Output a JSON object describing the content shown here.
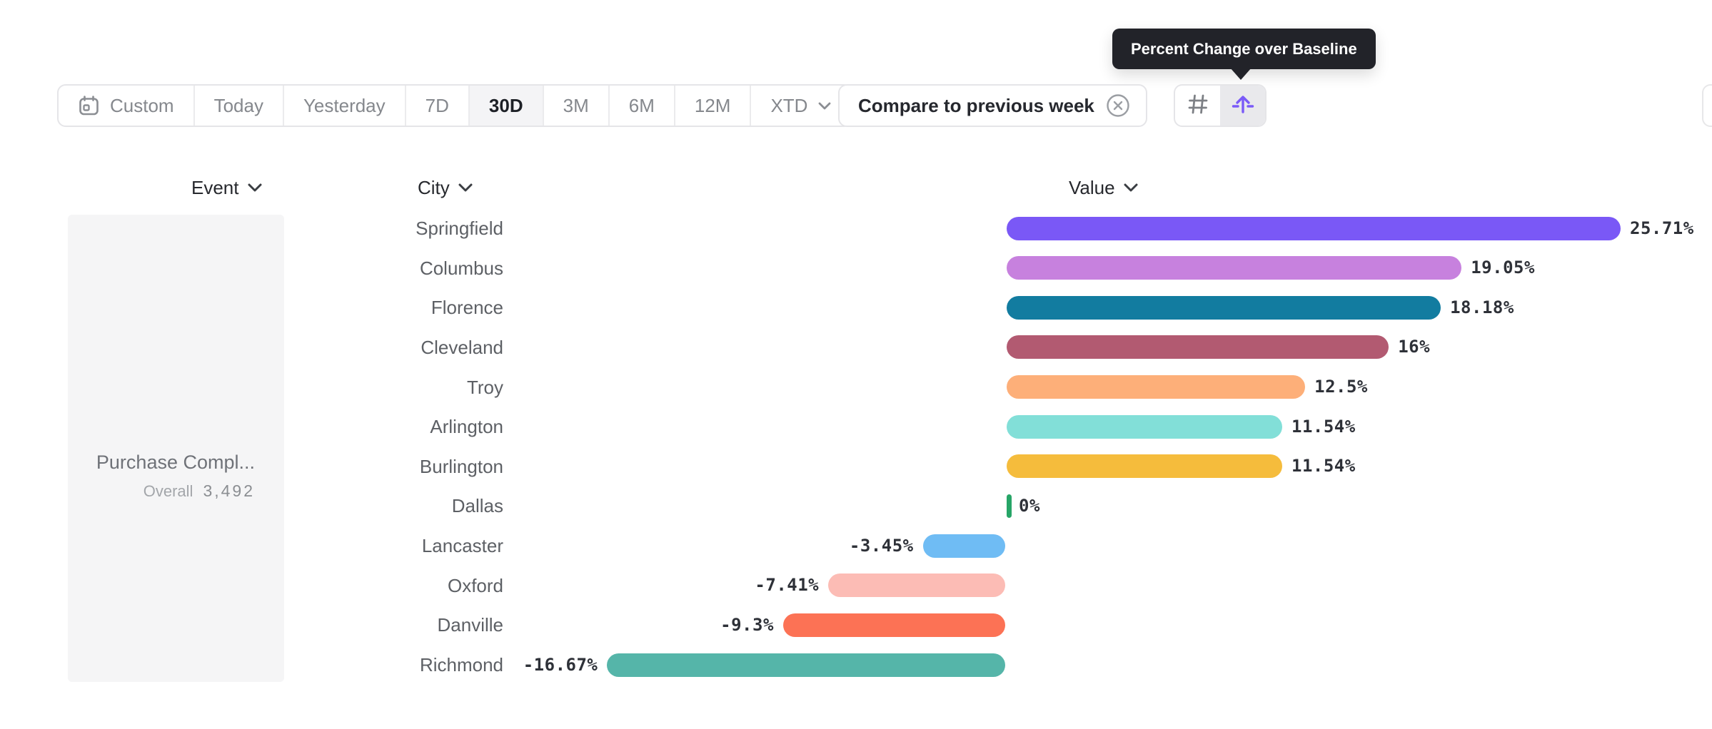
{
  "toolbar": {
    "items": [
      {
        "label": "Custom",
        "icon": "calendar-icon",
        "selected": false
      },
      {
        "label": "Today",
        "selected": false
      },
      {
        "label": "Yesterday",
        "selected": false
      },
      {
        "label": "7D",
        "selected": false
      },
      {
        "label": "30D",
        "selected": true
      },
      {
        "label": "3M",
        "selected": false
      },
      {
        "label": "6M",
        "selected": false
      },
      {
        "label": "12M",
        "selected": false
      },
      {
        "label": "XTD",
        "chevron": true,
        "selected": false
      }
    ]
  },
  "compare_chip": {
    "label": "Compare to previous week",
    "close_icon": "circle-x-icon"
  },
  "view_toggle": {
    "buttons": [
      {
        "name": "values-grid",
        "icon": "hash-icon",
        "active": false,
        "icon_color": "#7d8085"
      },
      {
        "name": "percent-change",
        "icon": "arrow-up-baseline-icon",
        "active": true,
        "icon_color": "#7a5af8"
      }
    ]
  },
  "tooltip": {
    "text": "Percent Change over Baseline",
    "background": "#222329"
  },
  "columns": {
    "event": {
      "label": "Event"
    },
    "city": {
      "label": "City"
    },
    "value": {
      "label": "Value"
    }
  },
  "event_panel": {
    "title": "Purchase Compl...",
    "metric_label": "Overall",
    "metric_value": "3,492"
  },
  "chart_data": {
    "type": "bar",
    "orientation": "horizontal",
    "title": "Percent Change over Baseline",
    "unit": "percent",
    "baseline": 0,
    "xlim": [
      -16.67,
      25.71
    ],
    "grid": false,
    "categories": [
      "Springfield",
      "Columbus",
      "Florence",
      "Cleveland",
      "Troy",
      "Arlington",
      "Burlington",
      "Dallas",
      "Lancaster",
      "Oxford",
      "Danville",
      "Richmond"
    ],
    "values": [
      25.71,
      19.05,
      18.18,
      16,
      12.5,
      11.54,
      11.54,
      0,
      -3.45,
      -7.41,
      -9.3,
      -16.67
    ],
    "value_labels": [
      "25.71%",
      "19.05%",
      "18.18%",
      "16%",
      "12.5%",
      "11.54%",
      "11.54%",
      "0%",
      "-3.45%",
      "-7.41%",
      "-9.3%",
      "-16.67%"
    ],
    "colors": [
      "#7a58f6",
      "#c781de",
      "#127ca0",
      "#b25a71",
      "#fdaf79",
      "#82dfd8",
      "#f5bc3c",
      "#27a567",
      "#6fbcf4",
      "#fcbcb5",
      "#fc7255",
      "#55b5a9"
    ]
  }
}
